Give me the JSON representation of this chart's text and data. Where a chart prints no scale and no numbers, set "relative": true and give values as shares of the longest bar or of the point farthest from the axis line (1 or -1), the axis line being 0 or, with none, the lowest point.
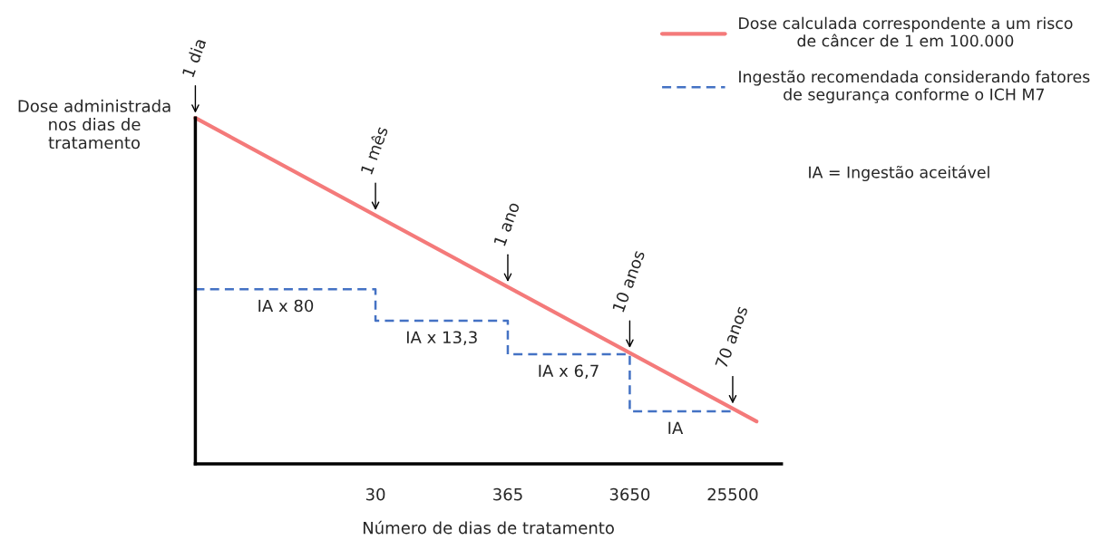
{
  "chart_data": {
    "type": "line",
    "relative": true,
    "log": "x",
    "xlabel": "Número de dias de tratamento",
    "ylabel": "Dose administrada\nnos dias de\ntratamento",
    "xlim": [
      1,
      64000
    ],
    "xticks": [
      30,
      365,
      3650,
      25500
    ],
    "legend": "top right",
    "series": [
      {
        "name": "Dose calculada correspondente a um risco\nde câncer de 1 em 100.000",
        "color": "#f47a7a",
        "line_style": "solid",
        "x": [
          1,
          40000
        ],
        "values": [
          1,
          0.123
        ]
      },
      {
        "name": "Ingestão recomendada considerando fatores\nde segurança conforme o ICH M7",
        "color": "#4472c4",
        "type": "step",
        "line_style": "dashed",
        "x": [
          1,
          30,
          365,
          3650,
          25500
        ],
        "values": [
          0.505,
          0.414,
          0.317,
          0.152,
          0.152
        ]
      }
    ],
    "annotations": [
      {
        "text": "1 dia",
        "x": 1,
        "y": 1
      },
      {
        "text": "1 mês",
        "x": 30,
        "y": 0.719
      },
      {
        "text": "1 ano",
        "x": 365,
        "y": 0.512
      },
      {
        "text": "10 anos",
        "x": 3650,
        "y": 0.321
      },
      {
        "text": "70 anos",
        "x": 25500,
        "y": 0.16
      },
      {
        "text": "IA x 80",
        "x": 5.5,
        "y": 0.505
      },
      {
        "text": "IA x 13,3",
        "x": 105,
        "y": 0.414
      },
      {
        "text": "IA x 6,7",
        "x": 1150,
        "y": 0.317
      },
      {
        "text": "IA",
        "x": 8600,
        "y": 0.152
      },
      "IA = Ingestão aceitável"
    ]
  }
}
